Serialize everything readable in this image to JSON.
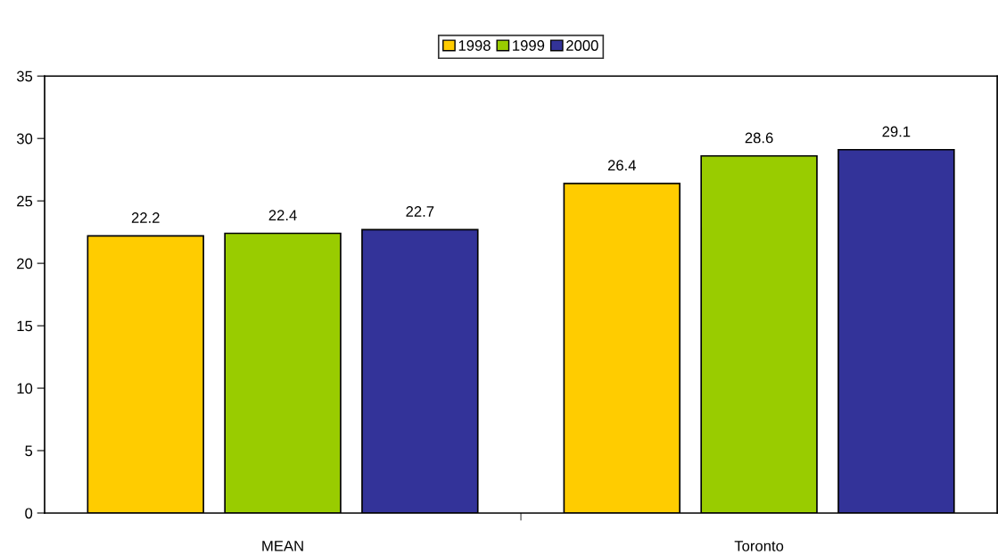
{
  "chart_data": {
    "type": "bar",
    "categories": [
      "MEAN",
      "Toronto"
    ],
    "series": [
      {
        "name": "1998",
        "color": "#ffcc00",
        "values": [
          22.2,
          26.4
        ]
      },
      {
        "name": "1999",
        "color": "#99cc00",
        "values": [
          22.4,
          28.6
        ]
      },
      {
        "name": "2000",
        "color": "#333399",
        "values": [
          22.7,
          29.1
        ]
      }
    ],
    "ylim": [
      0,
      35
    ],
    "yticks": [
      0,
      5,
      10,
      15,
      20,
      25,
      30,
      35
    ],
    "data_labels": true,
    "legend": "top",
    "grid": false
  }
}
